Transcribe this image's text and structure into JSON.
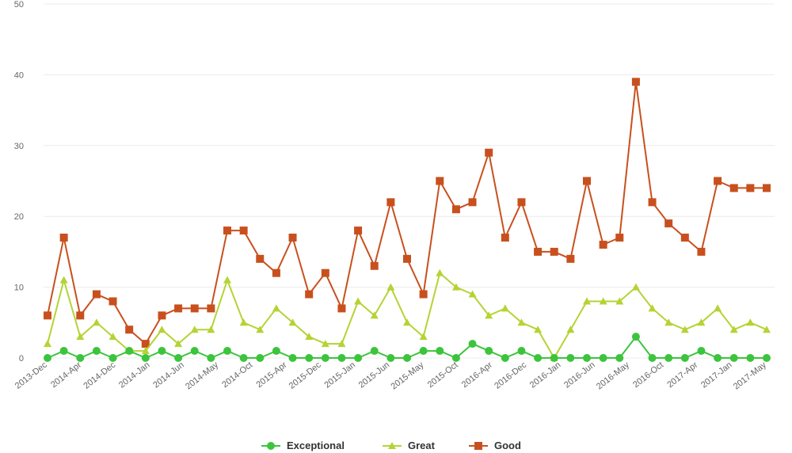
{
  "chart_data": {
    "type": "line",
    "title": "",
    "xlabel": "",
    "ylabel": "",
    "ylim": [
      0,
      50
    ],
    "yticks": [
      0,
      10,
      20,
      30,
      40,
      50
    ],
    "grid": true,
    "legend_position": "bottom-center",
    "x_tick_labels": [
      "2013-Dec",
      "2014-Apr",
      "2014-Dec",
      "2014-Jan",
      "2014-Jun",
      "2014-May",
      "2014-Oct",
      "2015-Apr",
      "2015-Dec",
      "2015-Jan",
      "2015-Jun",
      "2015-May",
      "2015-Oct",
      "2016-Apr",
      "2016-Dec",
      "2016-Jan",
      "2016-Jun",
      "2016-May",
      "2016-Oct",
      "2017-Apr",
      "2017-Jan",
      "2017-May"
    ],
    "series": [
      {
        "name": "Exceptional",
        "color": "#3cc43c",
        "marker": "circle",
        "values": [
          0,
          1,
          0,
          1,
          0,
          1,
          0,
          1,
          0,
          1,
          0,
          1,
          0,
          0,
          1,
          0,
          0,
          0,
          0,
          0,
          1,
          0,
          0,
          1,
          1,
          0,
          2,
          1,
          0,
          1,
          0,
          0,
          0,
          0,
          0,
          0,
          3,
          0,
          0,
          0,
          1,
          0,
          0,
          0,
          0
        ]
      },
      {
        "name": "Great",
        "color": "#b5d334",
        "marker": "triangle",
        "values": [
          2,
          11,
          3,
          5,
          3,
          1,
          1,
          4,
          2,
          4,
          4,
          11,
          5,
          4,
          7,
          5,
          3,
          2,
          2,
          8,
          6,
          10,
          5,
          3,
          12,
          10,
          9,
          6,
          7,
          5,
          4,
          0,
          4,
          8,
          8,
          8,
          10,
          7,
          5,
          4,
          5,
          7,
          4,
          5,
          4
        ]
      },
      {
        "name": "Good",
        "color": "#c8501e",
        "marker": "square",
        "values": [
          6,
          17,
          6,
          9,
          8,
          4,
          2,
          6,
          7,
          7,
          7,
          18,
          18,
          14,
          12,
          17,
          9,
          12,
          7,
          18,
          13,
          22,
          14,
          9,
          25,
          21,
          22,
          29,
          17,
          22,
          15,
          15,
          14,
          25,
          16,
          17,
          39,
          22,
          19,
          17,
          15,
          25,
          24,
          24,
          24
        ]
      }
    ]
  }
}
